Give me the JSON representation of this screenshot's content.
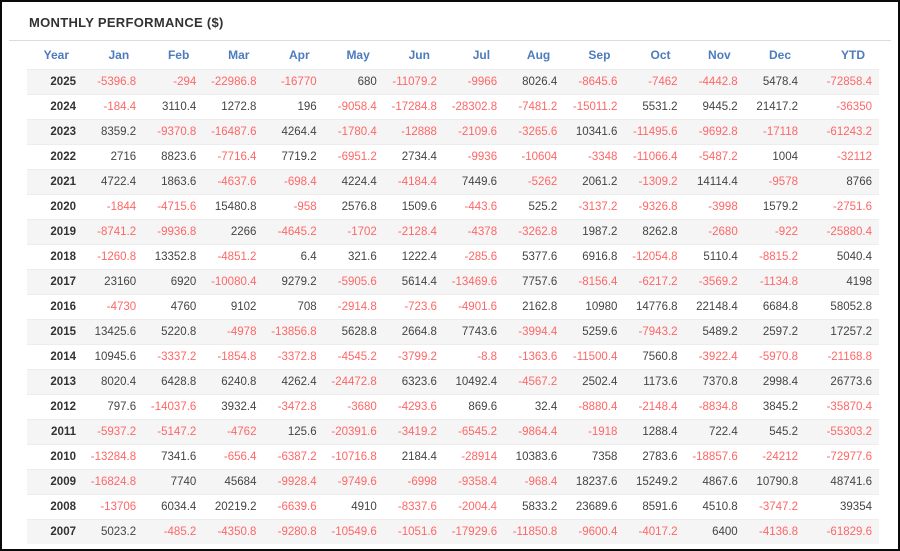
{
  "header": {
    "title": "MONTHLY PERFORMANCE ($)"
  },
  "colors": {
    "header_blue": "#4d7bbd",
    "negative_red": "#ff6666",
    "positive_dark": "#444444",
    "title_color": "#333333",
    "row_shade": "#f5f5f5",
    "divider": "#dcdcdc"
  },
  "table": {
    "columns": [
      "Year",
      "Jan",
      "Feb",
      "Mar",
      "Apr",
      "May",
      "Jun",
      "Jul",
      "Aug",
      "Sep",
      "Oct",
      "Nov",
      "Dec",
      "YTD"
    ],
    "rows": [
      {
        "year": "2025",
        "values": [
          "-5396.8",
          "-294",
          "-22986.8",
          "-16770",
          "680",
          "-11079.2",
          "-9966",
          "8026.4",
          "-8645.6",
          "-7462",
          "-4442.8",
          "5478.4",
          "-72858.4"
        ]
      },
      {
        "year": "2024",
        "values": [
          "-184.4",
          "3110.4",
          "1272.8",
          "196",
          "-9058.4",
          "-17284.8",
          "-28302.8",
          "-7481.2",
          "-15011.2",
          "5531.2",
          "9445.2",
          "21417.2",
          "-36350"
        ]
      },
      {
        "year": "2023",
        "values": [
          "8359.2",
          "-9370.8",
          "-16487.6",
          "4264.4",
          "-1780.4",
          "-12888",
          "-2109.6",
          "-3265.6",
          "10341.6",
          "-11495.6",
          "-9692.8",
          "-17118",
          "-61243.2"
        ]
      },
      {
        "year": "2022",
        "values": [
          "2716",
          "8823.6",
          "-7716.4",
          "7719.2",
          "-6951.2",
          "2734.4",
          "-9936",
          "-10604",
          "-3348",
          "-11066.4",
          "-5487.2",
          "1004",
          "-32112"
        ]
      },
      {
        "year": "2021",
        "values": [
          "4722.4",
          "1863.6",
          "-4637.6",
          "-698.4",
          "4224.4",
          "-4184.4",
          "7449.6",
          "-5262",
          "2061.2",
          "-1309.2",
          "14114.4",
          "-9578",
          "8766"
        ]
      },
      {
        "year": "2020",
        "values": [
          "-1844",
          "-4715.6",
          "15480.8",
          "-958",
          "2576.8",
          "1509.6",
          "-443.6",
          "525.2",
          "-3137.2",
          "-9326.8",
          "-3998",
          "1579.2",
          "-2751.6"
        ]
      },
      {
        "year": "2019",
        "values": [
          "-8741.2",
          "-9936.8",
          "2266",
          "-4645.2",
          "-1702",
          "-2128.4",
          "-4378",
          "-3262.8",
          "1987.2",
          "8262.8",
          "-2680",
          "-922",
          "-25880.4"
        ]
      },
      {
        "year": "2018",
        "values": [
          "-1260.8",
          "13352.8",
          "-4851.2",
          "6.4",
          "321.6",
          "1222.4",
          "-285.6",
          "5377.6",
          "6916.8",
          "-12054.8",
          "5110.4",
          "-8815.2",
          "5040.4"
        ]
      },
      {
        "year": "2017",
        "values": [
          "23160",
          "6920",
          "-10080.4",
          "9279.2",
          "-5905.6",
          "5614.4",
          "-13469.6",
          "7757.6",
          "-8156.4",
          "-6217.2",
          "-3569.2",
          "-1134.8",
          "4198"
        ]
      },
      {
        "year": "2016",
        "values": [
          "-4730",
          "4760",
          "9102",
          "708",
          "-2914.8",
          "-723.6",
          "-4901.6",
          "2162.8",
          "10980",
          "14776.8",
          "22148.4",
          "6684.8",
          "58052.8"
        ]
      },
      {
        "year": "2015",
        "values": [
          "13425.6",
          "5220.8",
          "-4978",
          "-13856.8",
          "5628.8",
          "2664.8",
          "7743.6",
          "-3994.4",
          "5259.6",
          "-7943.2",
          "5489.2",
          "2597.2",
          "17257.2"
        ]
      },
      {
        "year": "2014",
        "values": [
          "10945.6",
          "-3337.2",
          "-1854.8",
          "-3372.8",
          "-4545.2",
          "-3799.2",
          "-8.8",
          "-1363.6",
          "-11500.4",
          "7560.8",
          "-3922.4",
          "-5970.8",
          "-21168.8"
        ]
      },
      {
        "year": "2013",
        "values": [
          "8020.4",
          "6428.8",
          "6240.8",
          "4262.4",
          "-24472.8",
          "6323.6",
          "10492.4",
          "-4567.2",
          "2502.4",
          "1173.6",
          "7370.8",
          "2998.4",
          "26773.6"
        ]
      },
      {
        "year": "2012",
        "values": [
          "797.6",
          "-14037.6",
          "3932.4",
          "-3472.8",
          "-3680",
          "-4293.6",
          "869.6",
          "32.4",
          "-8880.4",
          "-2148.4",
          "-8834.8",
          "3845.2",
          "-35870.4"
        ]
      },
      {
        "year": "2011",
        "values": [
          "-5937.2",
          "-5147.2",
          "-4762",
          "125.6",
          "-20391.6",
          "-3419.2",
          "-6545.2",
          "-9864.4",
          "-1918",
          "1288.4",
          "722.4",
          "545.2",
          "-55303.2"
        ]
      },
      {
        "year": "2010",
        "values": [
          "-13284.8",
          "7341.6",
          "-656.4",
          "-6387.2",
          "-10716.8",
          "2184.4",
          "-28914",
          "10383.6",
          "7358",
          "2783.6",
          "-18857.6",
          "-24212",
          "-72977.6"
        ]
      },
      {
        "year": "2009",
        "values": [
          "-16824.8",
          "7740",
          "45684",
          "-9928.4",
          "-9749.6",
          "-6998",
          "-9358.4",
          "-968.4",
          "18237.6",
          "15249.2",
          "4867.6",
          "10790.8",
          "48741.6"
        ]
      },
      {
        "year": "2008",
        "values": [
          "-13706",
          "6034.4",
          "20219.2",
          "-6639.6",
          "4910",
          "-8337.6",
          "-2004.4",
          "5833.2",
          "23689.6",
          "8591.6",
          "4510.8",
          "-3747.2",
          "39354"
        ]
      },
      {
        "year": "2007",
        "values": [
          "5023.2",
          "-485.2",
          "-4350.8",
          "-9280.8",
          "-10549.6",
          "-1051.6",
          "-17929.6",
          "-11850.8",
          "-9600.4",
          "-4017.2",
          "6400",
          "-4136.8",
          "-61829.6"
        ]
      }
    ]
  }
}
